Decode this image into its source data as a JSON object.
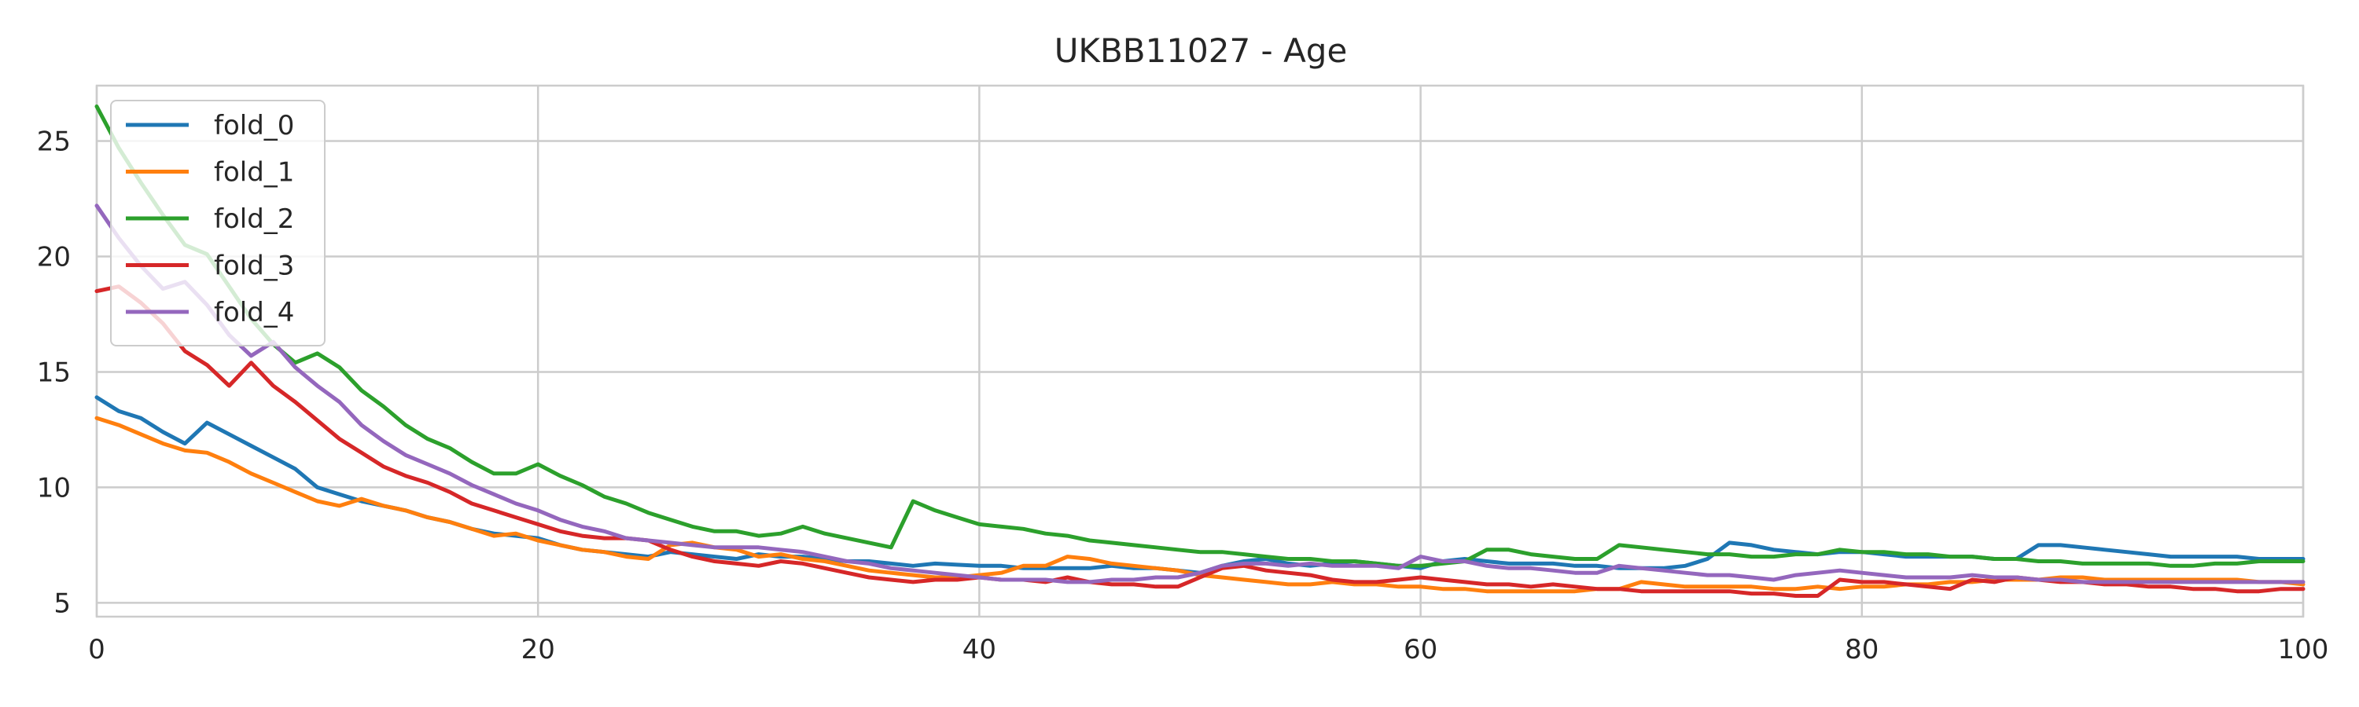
{
  "chart_data": {
    "type": "line",
    "title": "UKBB11027 - Age",
    "xlabel": "",
    "ylabel": "",
    "xlim": [
      0,
      100
    ],
    "ylim": [
      4.4,
      27.4
    ],
    "xticks": [
      0,
      20,
      40,
      60,
      80,
      100
    ],
    "yticks": [
      5,
      10,
      15,
      20,
      25
    ],
    "grid": true,
    "legend": "top-left",
    "x": [
      0,
      1,
      2,
      3,
      4,
      5,
      6,
      7,
      8,
      9,
      10,
      11,
      12,
      13,
      14,
      15,
      16,
      17,
      18,
      19,
      20,
      21,
      22,
      23,
      24,
      25,
      26,
      27,
      28,
      29,
      30,
      31,
      32,
      33,
      34,
      35,
      36,
      37,
      38,
      39,
      40,
      41,
      42,
      43,
      44,
      45,
      46,
      47,
      48,
      49,
      50,
      51,
      52,
      53,
      54,
      55,
      56,
      57,
      58,
      59,
      60,
      61,
      62,
      63,
      64,
      65,
      66,
      67,
      68,
      69,
      70,
      71,
      72,
      73,
      74,
      75,
      76,
      77,
      78,
      79,
      80,
      81,
      82,
      83,
      84,
      85,
      86,
      87,
      88,
      89,
      90,
      91,
      92,
      93,
      94,
      95,
      96,
      97,
      98,
      99,
      100
    ],
    "series": [
      {
        "name": "fold_0",
        "color": "#1f77b4",
        "values": [
          13.9,
          13.3,
          13.0,
          12.4,
          11.9,
          12.8,
          12.3,
          11.8,
          11.3,
          10.8,
          10.0,
          9.7,
          9.4,
          9.2,
          9.0,
          8.7,
          8.5,
          8.2,
          8.0,
          7.9,
          7.8,
          7.5,
          7.3,
          7.2,
          7.1,
          7.0,
          7.2,
          7.1,
          7.0,
          6.9,
          7.1,
          7.0,
          7.0,
          6.9,
          6.8,
          6.8,
          6.7,
          6.6,
          6.7,
          6.65,
          6.6,
          6.6,
          6.5,
          6.5,
          6.5,
          6.5,
          6.6,
          6.5,
          6.5,
          6.4,
          6.3,
          6.6,
          6.8,
          6.9,
          6.7,
          6.6,
          6.7,
          6.8,
          6.7,
          6.6,
          6.5,
          6.8,
          6.9,
          6.8,
          6.7,
          6.7,
          6.7,
          6.6,
          6.6,
          6.5,
          6.5,
          6.5,
          6.6,
          6.9,
          7.6,
          7.5,
          7.3,
          7.2,
          7.1,
          7.2,
          7.2,
          7.1,
          7.0,
          7.0,
          7.0,
          7.0,
          6.9,
          6.9,
          7.5,
          7.5,
          7.4,
          7.3,
          7.2,
          7.1,
          7.0,
          7.0,
          7.0,
          7.0,
          6.9,
          6.9,
          6.9
        ]
      },
      {
        "name": "fold_1",
        "color": "#ff7f0e",
        "values": [
          13.0,
          12.7,
          12.3,
          11.9,
          11.6,
          11.5,
          11.1,
          10.6,
          10.2,
          9.8,
          9.4,
          9.2,
          9.5,
          9.2,
          9.0,
          8.7,
          8.5,
          8.2,
          7.9,
          8.0,
          7.7,
          7.5,
          7.3,
          7.2,
          7.0,
          6.9,
          7.5,
          7.6,
          7.4,
          7.3,
          7.0,
          7.1,
          6.9,
          6.8,
          6.6,
          6.4,
          6.3,
          6.2,
          6.1,
          6.1,
          6.2,
          6.3,
          6.6,
          6.6,
          7.0,
          6.9,
          6.7,
          6.6,
          6.5,
          6.4,
          6.2,
          6.1,
          6.0,
          5.9,
          5.8,
          5.8,
          5.9,
          5.8,
          5.8,
          5.7,
          5.7,
          5.6,
          5.6,
          5.5,
          5.5,
          5.5,
          5.5,
          5.5,
          5.6,
          5.6,
          5.9,
          5.8,
          5.7,
          5.7,
          5.7,
          5.7,
          5.6,
          5.6,
          5.7,
          5.6,
          5.7,
          5.7,
          5.8,
          5.8,
          5.9,
          5.9,
          6.0,
          6.0,
          6.0,
          6.1,
          6.1,
          6.0,
          6.0,
          6.0,
          6.0,
          6.0,
          6.0,
          6.0,
          5.9,
          5.9,
          5.8
        ]
      },
      {
        "name": "fold_2",
        "color": "#2ca02c",
        "values": [
          26.5,
          24.7,
          23.2,
          21.8,
          20.5,
          20.1,
          18.7,
          17.3,
          16.2,
          15.4,
          15.8,
          15.2,
          14.2,
          13.5,
          12.7,
          12.1,
          11.7,
          11.1,
          10.6,
          10.6,
          11.0,
          10.5,
          10.1,
          9.6,
          9.3,
          8.9,
          8.6,
          8.3,
          8.1,
          8.1,
          7.9,
          8.0,
          8.3,
          8.0,
          7.8,
          7.6,
          7.4,
          9.4,
          9.0,
          8.7,
          8.4,
          8.3,
          8.2,
          8.0,
          7.9,
          7.7,
          7.6,
          7.5,
          7.4,
          7.3,
          7.2,
          7.2,
          7.1,
          7.0,
          6.9,
          6.9,
          6.8,
          6.8,
          6.7,
          6.6,
          6.6,
          6.7,
          6.8,
          7.3,
          7.3,
          7.1,
          7.0,
          6.9,
          6.9,
          7.5,
          7.4,
          7.3,
          7.2,
          7.1,
          7.1,
          7.0,
          7.0,
          7.1,
          7.1,
          7.3,
          7.2,
          7.2,
          7.1,
          7.1,
          7.0,
          7.0,
          6.9,
          6.9,
          6.8,
          6.8,
          6.7,
          6.7,
          6.7,
          6.7,
          6.6,
          6.6,
          6.7,
          6.7,
          6.8,
          6.8,
          6.8
        ]
      },
      {
        "name": "fold_3",
        "color": "#d62728",
        "values": [
          18.5,
          18.7,
          18.0,
          17.1,
          15.9,
          15.3,
          14.4,
          15.4,
          14.4,
          13.7,
          12.9,
          12.1,
          11.5,
          10.9,
          10.5,
          10.2,
          9.8,
          9.3,
          9.0,
          8.7,
          8.4,
          8.1,
          7.9,
          7.8,
          7.8,
          7.7,
          7.3,
          7.0,
          6.8,
          6.7,
          6.6,
          6.8,
          6.7,
          6.5,
          6.3,
          6.1,
          6.0,
          5.9,
          6.0,
          6.0,
          6.1,
          6.0,
          6.0,
          5.9,
          6.1,
          5.9,
          5.8,
          5.8,
          5.7,
          5.7,
          6.1,
          6.5,
          6.6,
          6.4,
          6.3,
          6.2,
          6.0,
          5.9,
          5.9,
          6.0,
          6.1,
          6.0,
          5.9,
          5.8,
          5.8,
          5.7,
          5.8,
          5.7,
          5.6,
          5.6,
          5.5,
          5.5,
          5.5,
          5.5,
          5.5,
          5.4,
          5.4,
          5.3,
          5.3,
          6.0,
          5.9,
          5.9,
          5.8,
          5.7,
          5.6,
          6.0,
          5.9,
          6.1,
          6.0,
          5.9,
          5.9,
          5.8,
          5.8,
          5.7,
          5.7,
          5.6,
          5.6,
          5.5,
          5.5,
          5.6,
          5.6
        ]
      },
      {
        "name": "fold_4",
        "color": "#9467bd",
        "values": [
          22.2,
          20.8,
          19.6,
          18.6,
          18.9,
          17.9,
          16.6,
          15.7,
          16.3,
          15.2,
          14.4,
          13.7,
          12.7,
          12.0,
          11.4,
          11.0,
          10.6,
          10.1,
          9.7,
          9.3,
          9.0,
          8.6,
          8.3,
          8.1,
          7.8,
          7.7,
          7.6,
          7.5,
          7.4,
          7.4,
          7.4,
          7.3,
          7.2,
          7.0,
          6.8,
          6.7,
          6.5,
          6.4,
          6.3,
          6.2,
          6.1,
          6.0,
          6.0,
          6.0,
          5.9,
          5.9,
          6.0,
          6.0,
          6.1,
          6.1,
          6.3,
          6.6,
          6.7,
          6.7,
          6.6,
          6.7,
          6.6,
          6.6,
          6.6,
          6.5,
          7.0,
          6.8,
          6.8,
          6.6,
          6.5,
          6.5,
          6.4,
          6.3,
          6.3,
          6.6,
          6.5,
          6.4,
          6.3,
          6.2,
          6.2,
          6.1,
          6.0,
          6.2,
          6.3,
          6.4,
          6.3,
          6.2,
          6.1,
          6.1,
          6.1,
          6.2,
          6.1,
          6.1,
          6.0,
          6.0,
          5.9,
          5.9,
          5.9,
          5.9,
          5.9,
          5.9,
          5.9,
          5.9,
          5.9,
          5.9,
          5.9
        ]
      }
    ]
  }
}
